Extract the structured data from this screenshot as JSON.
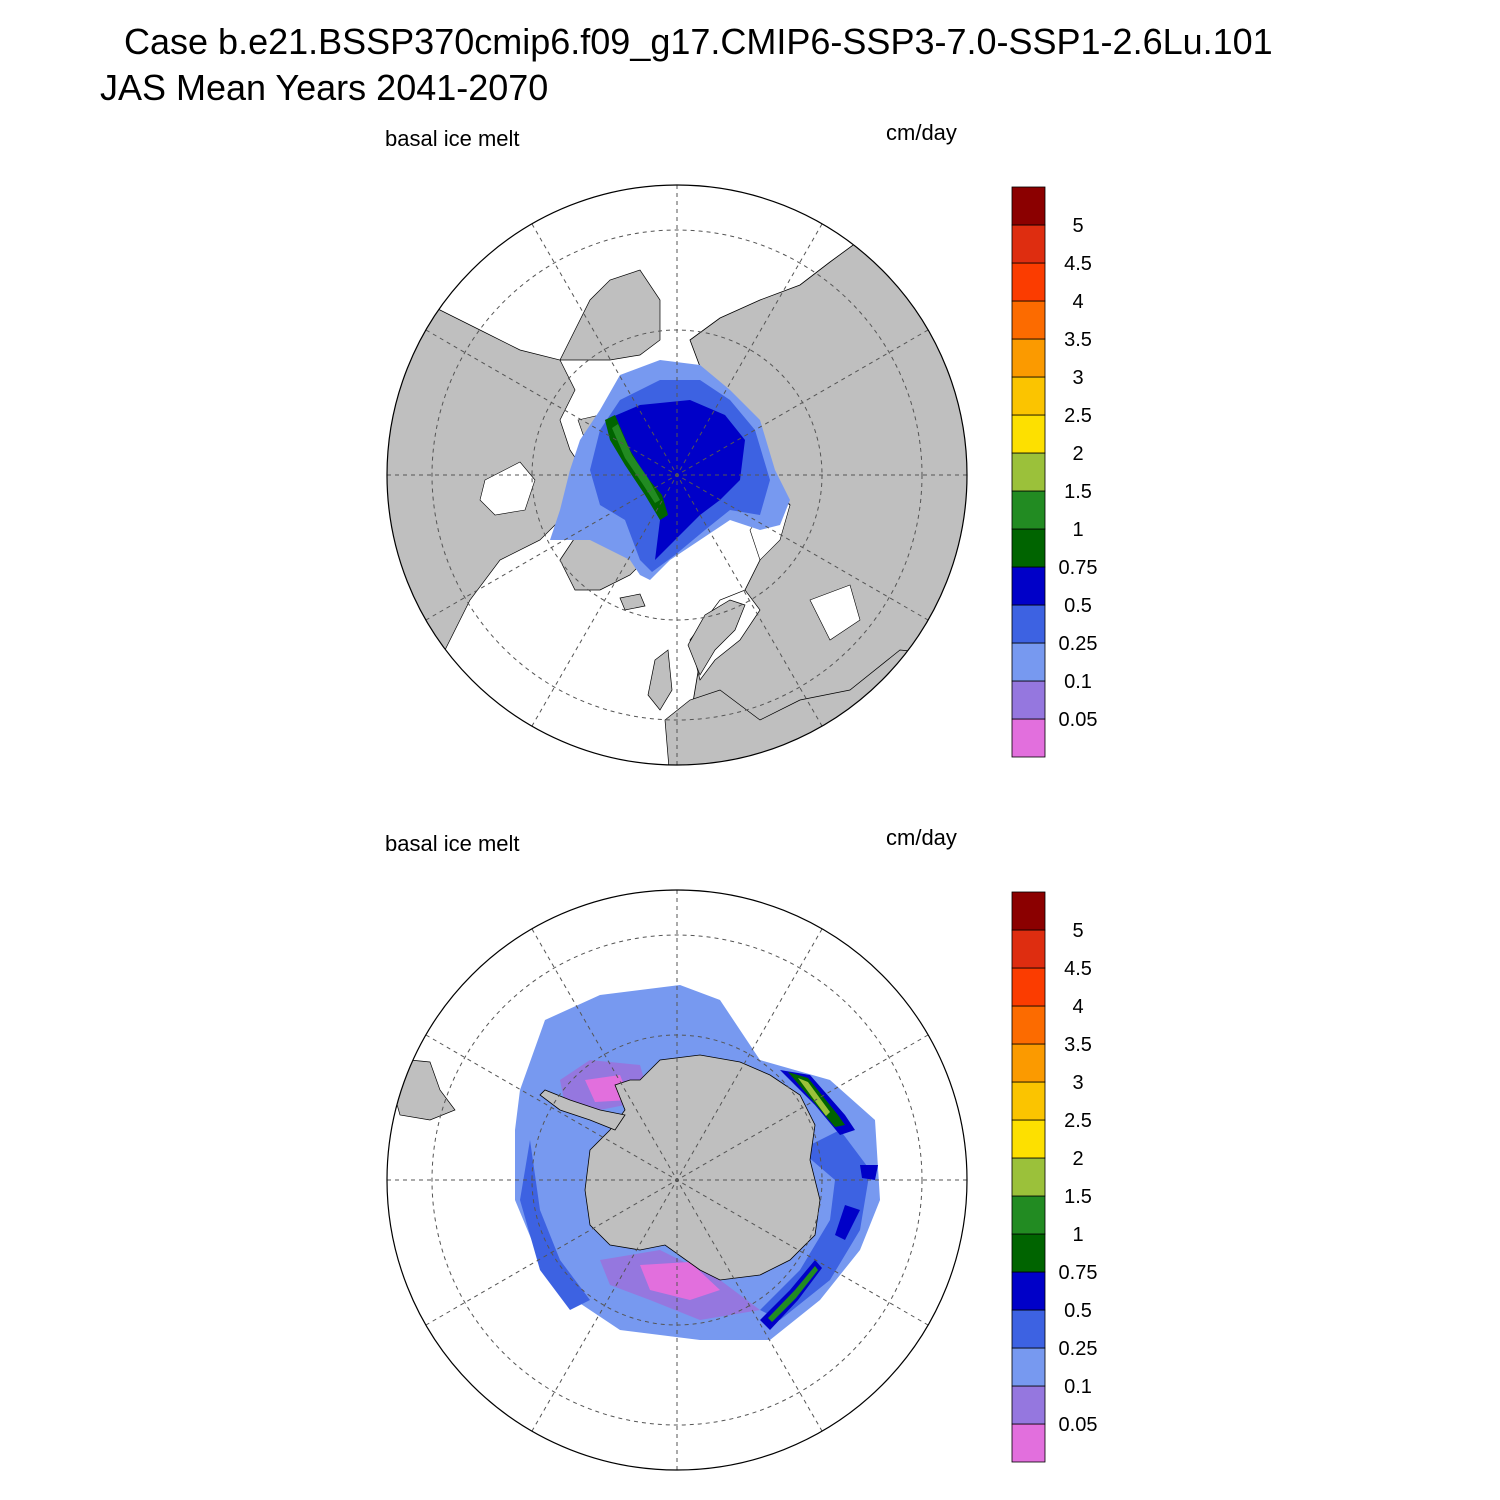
{
  "title": {
    "line1": "Case b.e21.BSSP370cmip6.f09_g17.CMIP6-SSP3-7.0-SSP1-2.6Lu.101",
    "line2": "JAS Mean   Years 2041-2070"
  },
  "panels": [
    {
      "hemisphere": "north",
      "variable": "basal ice melt",
      "units": "cm/day"
    },
    {
      "hemisphere": "south",
      "variable": "basal ice melt",
      "units": "cm/day"
    }
  ],
  "colorbar": {
    "levels": [
      "0.05",
      "0.1",
      "0.25",
      "0.5",
      "0.75",
      "1",
      "1.5",
      "2",
      "2.5",
      "3",
      "3.5",
      "4",
      "4.5",
      "5"
    ],
    "colors": [
      "#e26fdd",
      "#9577df",
      "#7799f0",
      "#3d62e2",
      "#0000c8",
      "#006400",
      "#228b22",
      "#9bc13a",
      "#fde000",
      "#fbc400",
      "#fb9a00",
      "#fc6b00",
      "#fb3c00",
      "#de2d10",
      "#8b0000"
    ]
  },
  "map_colors": {
    "land": "#bfbfbf",
    "ocean": "#ffffff"
  }
}
